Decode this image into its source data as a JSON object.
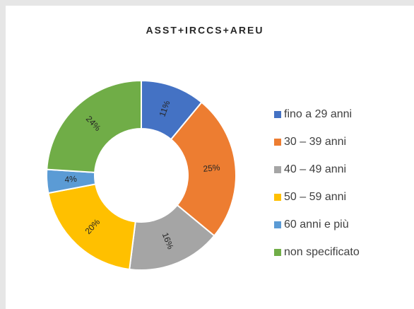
{
  "chart_data": {
    "type": "donut",
    "title": "ASST+IRCCS+AREU",
    "categories": [
      "fino a 29 anni",
      "30 – 39 anni",
      "40 – 49 anni",
      "50 – 59 anni",
      "60 anni e più",
      "non specificato"
    ],
    "values": [
      11,
      25,
      16,
      20,
      4,
      24
    ],
    "value_labels": [
      "11%",
      "25%",
      "16%",
      "20%",
      "4%",
      "24%"
    ],
    "colors": [
      "#4472c4",
      "#ed7d31",
      "#a5a5a5",
      "#ffc000",
      "#5b9bd5",
      "#70ad47"
    ],
    "legend": "right"
  }
}
